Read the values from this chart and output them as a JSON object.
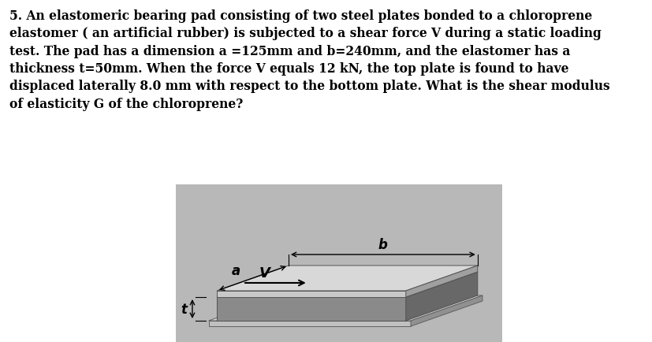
{
  "title_text": "5. An elastomeric bearing pad consisting of two steel plates bonded to a chloroprene\nelastomer ( an artificial rubber) is subjected to a shear force V during a static loading\ntest. The pad has a dimension a =125mm and b=240mm, and the elastomer has a\nthickness t=50mm. When the force V equals 12 kN, the top plate is found to have\ndisplaced laterally 8.0 mm with respect to the bottom plate. What is the shear modulus\nof elasticity G of the chloroprene?",
  "background_color": "#ffffff",
  "text_color": "#000000",
  "text_fontsize": 11.2,
  "label_b": "b",
  "label_a": "a",
  "label_V": "V",
  "label_t": "t",
  "bg_rect_color": "#b8b8b8",
  "plate_light": "#d0d0d0",
  "plate_top_face": "#c8c8c8",
  "plate_right_face": "#a0a0a0",
  "plate_front_face": "#b0b0b0",
  "elastomer_front": "#888888",
  "elastomer_right": "#707070",
  "elastomer_top": "#b0b0b0",
  "bottom_plate_light": "#d0d0d0",
  "bottom_plate_top": "#c0c0c0",
  "bottom_plate_right": "#909090"
}
